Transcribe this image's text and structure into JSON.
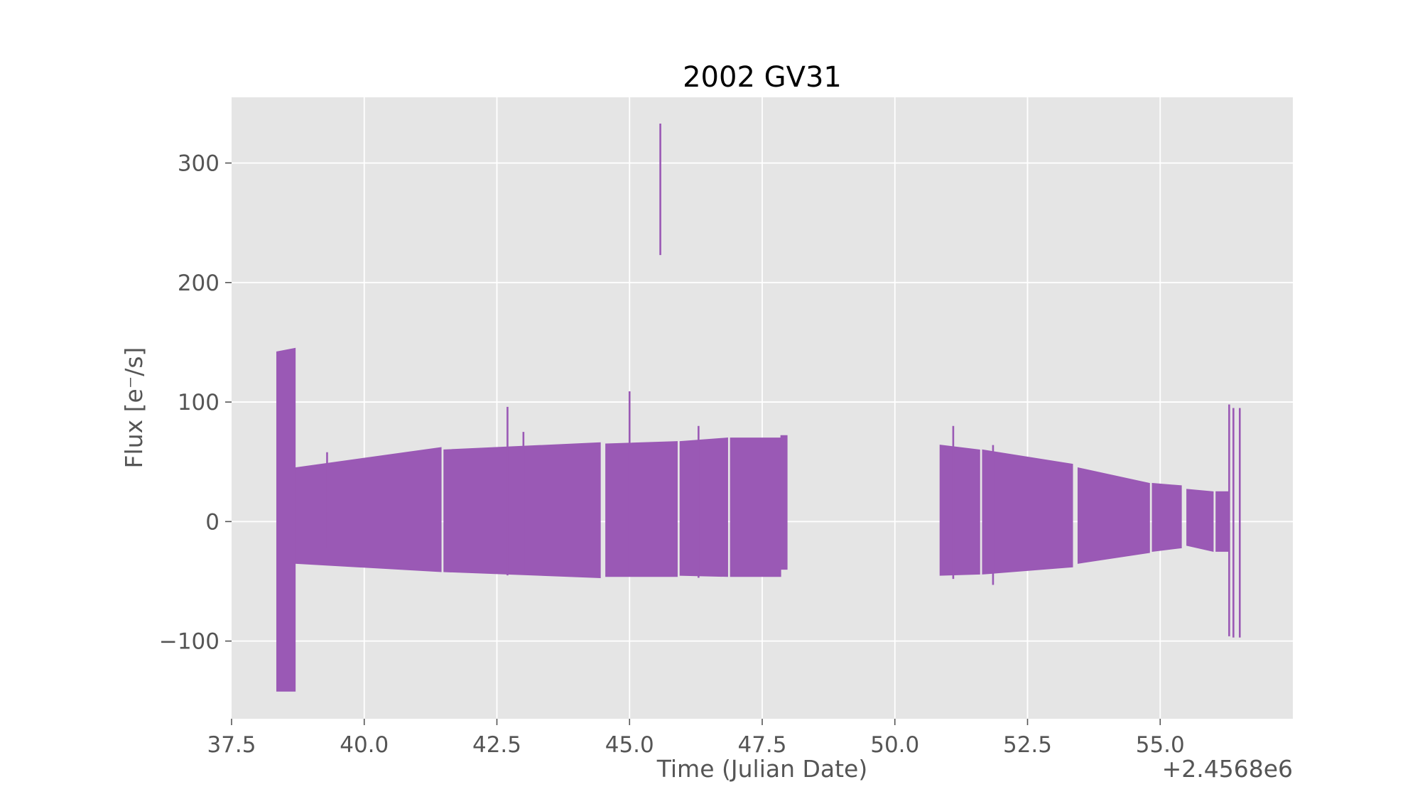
{
  "chart_data": {
    "type": "line",
    "title": "2002 GV31",
    "xlabel": "Time (Julian Date)",
    "ylabel": "Flux [e⁻/s]",
    "offset_text": "+2.4568e6",
    "xlim": [
      37.5,
      57.5
    ],
    "ylim": [
      -165,
      355
    ],
    "x_ticks": [
      37.5,
      40.0,
      42.5,
      45.0,
      47.5,
      50.0,
      52.5,
      55.0
    ],
    "x_tick_labels": [
      "37.5",
      "40.0",
      "42.5",
      "45.0",
      "47.5",
      "50.0",
      "52.5",
      "55.0"
    ],
    "y_ticks": [
      -100,
      0,
      100,
      200,
      300
    ],
    "y_tick_labels": [
      "−100",
      "0",
      "100",
      "200",
      "300"
    ],
    "grid": true,
    "background": "#e5e5e5",
    "series": [
      {
        "color": "#9a59b5",
        "segments": [
          {
            "x_start": 38.35,
            "x_end": 38.7,
            "upper_start": 142,
            "upper_end": 145,
            "lower_start": -142,
            "lower_end": -142
          },
          {
            "x_start": 38.7,
            "x_end": 41.45,
            "upper_start": 45,
            "upper_end": 62,
            "lower_start": -35,
            "lower_end": -42
          },
          {
            "x_start": 41.5,
            "x_end": 44.45,
            "upper_start": 60,
            "upper_end": 66,
            "lower_start": -42,
            "lower_end": -47
          },
          {
            "x_start": 44.55,
            "x_end": 45.9,
            "upper_start": 65,
            "upper_end": 67,
            "lower_start": -46,
            "lower_end": -46
          },
          {
            "x_start": 45.95,
            "x_end": 46.85,
            "upper_start": 67,
            "upper_end": 70,
            "lower_start": -45,
            "lower_end": -46
          },
          {
            "x_start": 46.9,
            "x_end": 47.85,
            "upper_start": 70,
            "upper_end": 70,
            "lower_start": -46,
            "lower_end": -46
          },
          {
            "x_start": 47.85,
            "x_end": 47.97,
            "upper_start": 72,
            "upper_end": 72,
            "lower_start": -40,
            "lower_end": -40
          },
          {
            "x_start": 50.85,
            "x_end": 51.6,
            "upper_start": 64,
            "upper_end": 60,
            "lower_start": -45,
            "lower_end": -44
          },
          {
            "x_start": 51.65,
            "x_end": 53.35,
            "upper_start": 60,
            "upper_end": 48,
            "lower_start": -44,
            "lower_end": -38
          },
          {
            "x_start": 53.45,
            "x_end": 54.8,
            "upper_start": 45,
            "upper_end": 32,
            "lower_start": -35,
            "lower_end": -26
          },
          {
            "x_start": 54.85,
            "x_end": 55.4,
            "upper_start": 32,
            "upper_end": 30,
            "lower_start": -25,
            "lower_end": -22
          },
          {
            "x_start": 55.5,
            "x_end": 56.0,
            "upper_start": 27,
            "upper_end": 25,
            "lower_start": -20,
            "lower_end": -25
          },
          {
            "x_start": 56.05,
            "x_end": 56.3,
            "upper_start": 25,
            "upper_end": 25,
            "lower_start": -25,
            "lower_end": -25
          }
        ],
        "spikes": [
          {
            "x": 39.3,
            "y_high": 58,
            "y_low": -22
          },
          {
            "x": 42.7,
            "y_high": 96,
            "y_low": -45
          },
          {
            "x": 43.0,
            "y_high": 75,
            "y_low": -44
          },
          {
            "x": 45.0,
            "y_high": 109,
            "y_low": -46
          },
          {
            "x": 45.58,
            "y_high": 333,
            "y_low": 223
          },
          {
            "x": 46.3,
            "y_high": 80,
            "y_low": -47
          },
          {
            "x": 51.1,
            "y_high": 80,
            "y_low": -48
          },
          {
            "x": 51.85,
            "y_high": 64,
            "y_low": -53
          },
          {
            "x": 56.3,
            "y_high": 98,
            "y_low": -96
          },
          {
            "x": 56.38,
            "y_high": 95,
            "y_low": -97
          },
          {
            "x": 56.5,
            "y_high": 95,
            "y_low": -97
          }
        ]
      }
    ]
  }
}
